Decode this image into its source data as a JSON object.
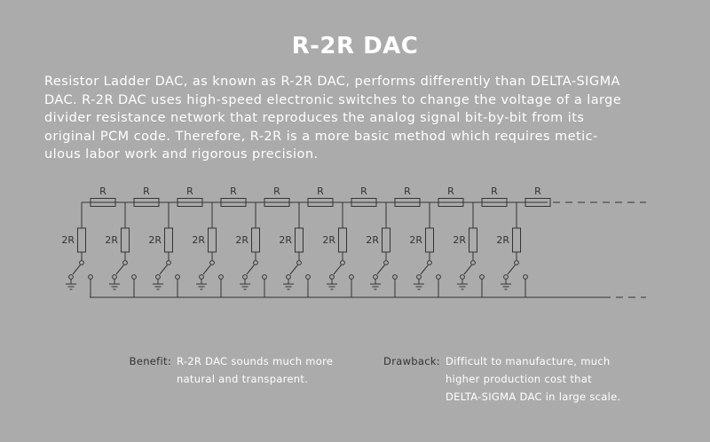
{
  "title": "R-2R DAC",
  "intro_lines": [
    "Resistor Ladder DAC, as known as R-2R DAC, performs differently than DELTA-SIGMA",
    "DAC. R-2R DAC uses high-speed electronic switches to change the voltage of a large",
    "divider resistance network that reproduces the analog signal bit-by-bit from its",
    "original PCM code. Therefore, R-2R is a more basic method which requires metic-",
    "ulous labor work and rigorous precision."
  ],
  "circuit": {
    "series_resistor_label": "R",
    "shunt_resistor_label": "2R",
    "stage_count": 11
  },
  "benefit": {
    "label": "Benefit:",
    "lines": [
      "R-2R DAC sounds much more",
      "natural and transparent."
    ]
  },
  "drawback": {
    "label": "Drawback:",
    "lines": [
      "Difficult to manufacture, much",
      "higher production cost that",
      "DELTA-SIGMA DAC in large scale."
    ]
  },
  "colors": {
    "background": "#ababab",
    "title": "#ffffff",
    "body_text": "#ffffff",
    "circuit_lines": "#333333",
    "labels": "#333333"
  }
}
